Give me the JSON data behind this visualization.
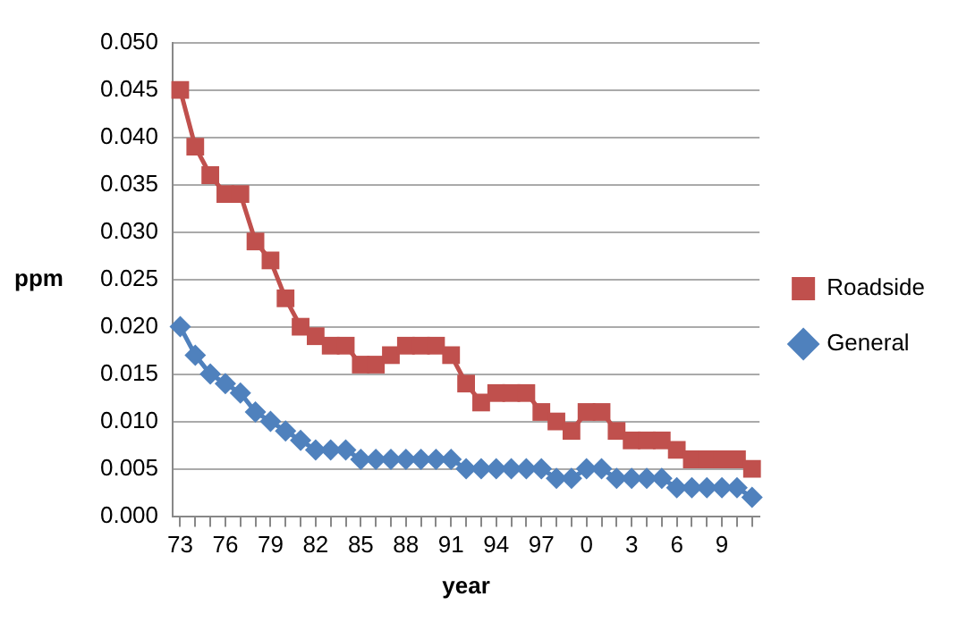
{
  "chart_data": {
    "type": "line",
    "xlabel": "year",
    "ylabel": "ppm",
    "categories": [
      "73",
      null,
      null,
      "76",
      null,
      null,
      "79",
      null,
      null,
      "82",
      null,
      null,
      "85",
      null,
      null,
      "88",
      null,
      null,
      "91",
      null,
      null,
      "94",
      null,
      null,
      "97",
      null,
      null,
      "0",
      null,
      null,
      "3",
      null,
      null,
      "6",
      null,
      null,
      "9",
      null,
      null
    ],
    "series": [
      {
        "name": "Roadside",
        "color": "#c0504d",
        "marker": "square",
        "values": [
          0.045,
          0.039,
          0.036,
          0.034,
          0.034,
          0.029,
          0.027,
          0.023,
          0.02,
          0.019,
          0.018,
          0.018,
          0.016,
          0.016,
          0.017,
          0.018,
          0.018,
          0.018,
          0.017,
          0.014,
          0.012,
          0.013,
          0.013,
          0.013,
          0.011,
          0.01,
          0.009,
          0.011,
          0.011,
          0.009,
          0.008,
          0.008,
          0.008,
          0.007,
          0.006,
          0.006,
          0.006,
          0.006,
          0.005
        ]
      },
      {
        "name": "General",
        "color": "#4f81bd",
        "marker": "diamond",
        "values": [
          0.02,
          0.017,
          0.015,
          0.014,
          0.013,
          0.011,
          0.01,
          0.009,
          0.008,
          0.007,
          0.007,
          0.007,
          0.006,
          0.006,
          0.006,
          0.006,
          0.006,
          0.006,
          0.006,
          0.005,
          0.005,
          0.005,
          0.005,
          0.005,
          0.005,
          0.004,
          0.004,
          0.005,
          0.005,
          0.004,
          0.004,
          0.004,
          0.004,
          0.003,
          0.003,
          0.003,
          0.003,
          0.003,
          0.002
        ]
      }
    ],
    "ylim": [
      0,
      0.05
    ],
    "yticks": [
      {
        "value": 0,
        "label": "0.000"
      },
      {
        "value": 0.005,
        "label": "0.005"
      },
      {
        "value": 0.01,
        "label": "0.010"
      },
      {
        "value": 0.015,
        "label": "0.015"
      },
      {
        "value": 0.02,
        "label": "0.020"
      },
      {
        "value": 0.025,
        "label": "0.025"
      },
      {
        "value": 0.03,
        "label": "0.030"
      },
      {
        "value": 0.035,
        "label": "0.035"
      },
      {
        "value": 0.04,
        "label": "0.040"
      },
      {
        "value": 0.045,
        "label": "0.045"
      },
      {
        "value": 0.05,
        "label": "0.050"
      }
    ],
    "grid": "y",
    "legend": "right",
    "line_style": "solid"
  }
}
